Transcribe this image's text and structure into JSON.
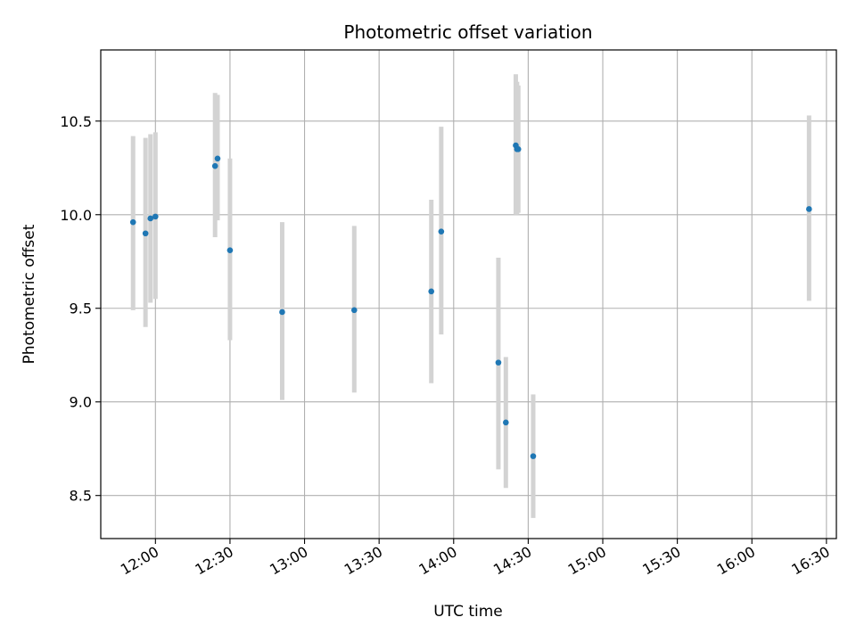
{
  "chart_data": {
    "type": "scatter",
    "title": "Photometric offset variation",
    "xlabel": "UTC time",
    "ylabel": "Photometric offset",
    "xlim": [
      "11:38",
      "16:34"
    ],
    "ylim": [
      8.27,
      10.88
    ],
    "x_ticks": [
      "12:00",
      "12:30",
      "13:00",
      "13:30",
      "14:00",
      "14:30",
      "15:00",
      "15:30",
      "16:00",
      "16:30"
    ],
    "y_ticks": [
      "8.5",
      "9.0",
      "9.5",
      "10.0",
      "10.5"
    ],
    "grid": true,
    "colors": {
      "point": "#1f77b4",
      "errorbar": "#d3d3d3",
      "grid": "#b0b0b0"
    },
    "points": [
      {
        "x": "11:51",
        "y": 9.96,
        "ylow": 9.49,
        "yhigh": 10.42
      },
      {
        "x": "11:56",
        "y": 9.9,
        "ylow": 9.4,
        "yhigh": 10.41
      },
      {
        "x": "11:58",
        "y": 9.98,
        "ylow": 9.53,
        "yhigh": 10.43
      },
      {
        "x": "12:00",
        "y": 9.99,
        "ylow": 9.55,
        "yhigh": 10.44
      },
      {
        "x": "12:24",
        "y": 10.26,
        "ylow": 9.88,
        "yhigh": 10.65
      },
      {
        "x": "12:25",
        "y": 10.3,
        "ylow": 9.97,
        "yhigh": 10.64
      },
      {
        "x": "12:30",
        "y": 9.81,
        "ylow": 9.33,
        "yhigh": 10.3
      },
      {
        "x": "12:51",
        "y": 9.48,
        "ylow": 9.01,
        "yhigh": 9.96
      },
      {
        "x": "13:20",
        "y": 9.49,
        "ylow": 9.05,
        "yhigh": 9.94
      },
      {
        "x": "13:51",
        "y": 9.59,
        "ylow": 9.1,
        "yhigh": 10.08
      },
      {
        "x": "13:55",
        "y": 9.91,
        "ylow": 9.36,
        "yhigh": 10.47
      },
      {
        "x": "14:18",
        "y": 9.21,
        "ylow": 8.64,
        "yhigh": 9.77
      },
      {
        "x": "14:21",
        "y": 8.89,
        "ylow": 8.54,
        "yhigh": 9.24
      },
      {
        "x": "14:25",
        "y": 10.37,
        "ylow": 10.0,
        "yhigh": 10.75
      },
      {
        "x": "14:25.5",
        "y": 10.35,
        "ylow": 10.0,
        "yhigh": 10.71
      },
      {
        "x": "14:26",
        "y": 10.35,
        "ylow": 10.01,
        "yhigh": 10.69
      },
      {
        "x": "14:32",
        "y": 8.71,
        "ylow": 8.38,
        "yhigh": 9.04
      },
      {
        "x": "16:23",
        "y": 10.03,
        "ylow": 9.54,
        "yhigh": 10.53
      }
    ]
  }
}
